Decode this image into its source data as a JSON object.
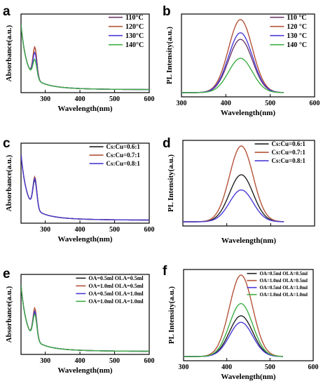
{
  "chart_data": [
    {
      "type": "line",
      "panel_label": "a",
      "xlabel": "Wavelength(nm)",
      "ylabel": "Absorbance(a.u.)",
      "xlim": [
        230,
        600
      ],
      "xticks": [
        300,
        400,
        500,
        600
      ],
      "show_xtick_labels": true,
      "curve": "absorbance",
      "legend_position": "top-right",
      "series": [
        {
          "name": "110°C",
          "color": "#6b3a6b",
          "scale": 1.0
        },
        {
          "name": "120°C",
          "color": "#b5533a",
          "scale": 1.0
        },
        {
          "name": "130°C",
          "color": "#4a3bd6",
          "scale": 0.82
        },
        {
          "name": "140°C",
          "color": "#3fae45",
          "scale": 0.6
        }
      ]
    },
    {
      "type": "line",
      "panel_label": "b",
      "xlabel": "Wavelength(nm)",
      "ylabel": "PL Intensity(a.u.)",
      "xlim": [
        300,
        600
      ],
      "xticks": [
        300,
        400,
        500,
        600
      ],
      "show_xtick_labels": true,
      "curve": "pl",
      "peak_nm": 433,
      "legend_position": "top-right",
      "series": [
        {
          "name": "110 °C",
          "color": "#6b3a6b",
          "peak": 0.73
        },
        {
          "name": "120 °C",
          "color": "#b5533a",
          "peak": 1.0
        },
        {
          "name": "130 °C",
          "color": "#4a3bd6",
          "peak": 0.82
        },
        {
          "name": "140 °C",
          "color": "#3fae45",
          "peak": 0.47
        }
      ]
    },
    {
      "type": "line",
      "panel_label": "c",
      "xlabel": "Wavelength(nm)",
      "ylabel": "Absorbance(a.u.)",
      "xlim": [
        230,
        600
      ],
      "xticks": [
        300,
        400,
        500,
        600
      ],
      "show_xtick_labels": true,
      "curve": "absorbance",
      "legend_position": "top-right",
      "series": [
        {
          "name": "Cs:Cu=0.6:1",
          "color": "#222222",
          "scale": 0.9
        },
        {
          "name": "Cs:Cu=0.7:1",
          "color": "#b5533a",
          "scale": 1.0
        },
        {
          "name": "Cs:Cu=0.8:1",
          "color": "#4a3bd6",
          "scale": 0.95
        }
      ]
    },
    {
      "type": "line",
      "panel_label": "d",
      "xlabel": "Wavelength(nm)",
      "ylabel": "PL Intensity(a.u.)",
      "xlim": [
        300,
        600
      ],
      "xticks": [
        300,
        400,
        500,
        600
      ],
      "show_xtick_labels": false,
      "curve": "pl",
      "peak_nm": 433,
      "legend_position": "top-right",
      "series": [
        {
          "name": "Cs:Cu=0.6:1",
          "color": "#222222",
          "peak": 0.62
        },
        {
          "name": "Cs:Cu=0.7:1",
          "color": "#b5533a",
          "peak": 1.0
        },
        {
          "name": "Cs:Cu=0.8:1",
          "color": "#4a3bd6",
          "peak": 0.42
        }
      ]
    },
    {
      "type": "line",
      "panel_label": "e",
      "xlabel": "Wavelength(nm)",
      "ylabel": "Absorbance(a.u.)",
      "xlim": [
        230,
        600
      ],
      "xticks": [
        300,
        400,
        500,
        600
      ],
      "show_xtick_labels": true,
      "curve": "absorbance",
      "legend_position": "top-right",
      "series": [
        {
          "name": "OA=0.5ml OLA=0.5ml",
          "color": "#222222",
          "scale": 0.85
        },
        {
          "name": "OA=1.0ml OLA=0.5ml",
          "color": "#b5533a",
          "scale": 1.0
        },
        {
          "name": "OA=0.5ml OLA=1.0ml",
          "color": "#4a3bd6",
          "scale": 0.9
        },
        {
          "name": "OA=1.0ml OLA=1.0ml",
          "color": "#3fae45",
          "scale": 0.8
        }
      ]
    },
    {
      "type": "line",
      "panel_label": "f",
      "xlabel": "Wavelength(nm)",
      "ylabel": "PL Intensity(a.u.)",
      "xlim": [
        300,
        600
      ],
      "xticks": [
        300,
        400,
        500,
        600
      ],
      "show_xtick_labels": true,
      "curve": "pl",
      "peak_nm": 433,
      "legend_position": "top-right",
      "series": [
        {
          "name": "OA=0.5ml OLA=0.5ml",
          "color": "#222222",
          "peak": 0.5
        },
        {
          "name": "OA=1.0ml OLA=0.5ml",
          "color": "#b5533a",
          "peak": 1.0
        },
        {
          "name": "OA=0.5ml OLA=1.0ml",
          "color": "#4a3bd6",
          "peak": 0.42
        },
        {
          "name": "OA=1.0ml OLA=1.0ml",
          "color": "#3fae45",
          "peak": 0.65
        }
      ]
    }
  ]
}
